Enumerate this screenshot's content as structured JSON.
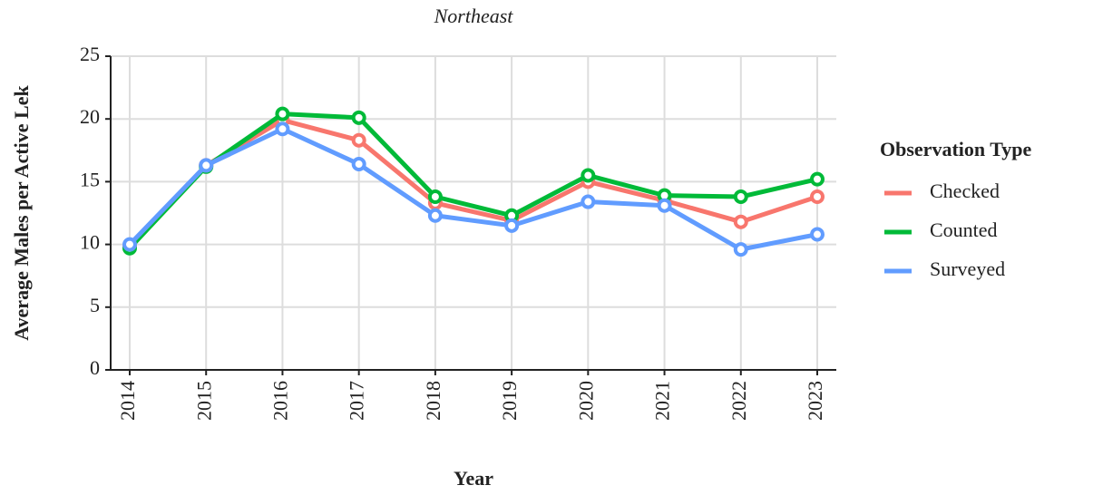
{
  "chart_data": {
    "type": "line",
    "title": "Northeast",
    "x_label": "Year",
    "y_label": "Average Males per Active Lek",
    "categories": [
      "2014",
      "2015",
      "2016",
      "2017",
      "2018",
      "2019",
      "2020",
      "2021",
      "2022",
      "2023"
    ],
    "series": [
      {
        "name": "Checked",
        "color": "#f8766d",
        "values": [
          9.9,
          16.3,
          19.9,
          18.3,
          13.3,
          11.9,
          15.0,
          13.5,
          11.8,
          13.8
        ]
      },
      {
        "name": "Counted",
        "color": "#00ba38",
        "values": [
          9.7,
          16.2,
          20.4,
          20.1,
          13.8,
          12.3,
          15.5,
          13.9,
          13.8,
          15.2
        ]
      },
      {
        "name": "Surveyed",
        "color": "#619cff",
        "values": [
          10.0,
          16.3,
          19.2,
          16.4,
          12.3,
          11.5,
          13.4,
          13.1,
          9.6,
          10.8
        ]
      }
    ],
    "legend_title": "Observation Type",
    "ylim": [
      0,
      25
    ],
    "yticks": [
      0,
      5,
      10,
      15,
      20,
      25
    ],
    "grid": true
  }
}
